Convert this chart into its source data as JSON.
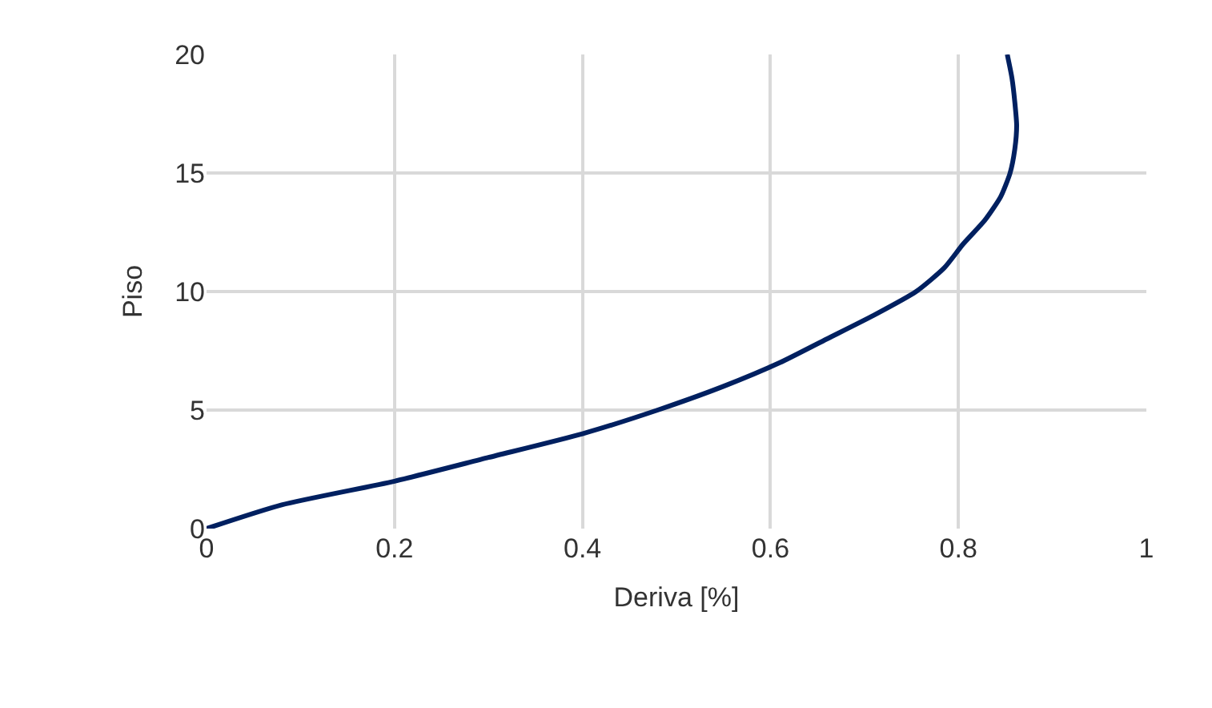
{
  "chart_data": {
    "type": "line",
    "xlabel": "Deriva [%]",
    "ylabel": "Piso",
    "x": [
      0,
      0.08,
      0.2,
      0.3,
      0.4,
      0.48,
      0.55,
      0.61,
      0.66,
      0.71,
      0.755,
      0.785,
      0.805,
      0.828,
      0.845,
      0.855,
      0.86,
      0.862,
      0.86,
      0.857,
      0.852
    ],
    "series": [
      {
        "color": "#002060",
        "values": [
          0,
          1,
          2,
          3,
          4,
          5,
          6,
          7,
          8,
          9,
          10,
          11,
          12,
          13,
          14,
          15,
          16,
          17,
          18,
          19,
          20
        ]
      }
    ],
    "xlim": [
      0,
      1
    ],
    "xticks": [
      0,
      0.2,
      0.4,
      0.6,
      0.8,
      1
    ],
    "ylim": [
      0,
      20
    ],
    "yticks": [
      0,
      5,
      10,
      15,
      20
    ],
    "grid": true,
    "legend": false,
    "marker": "none",
    "line_style": "solid"
  }
}
